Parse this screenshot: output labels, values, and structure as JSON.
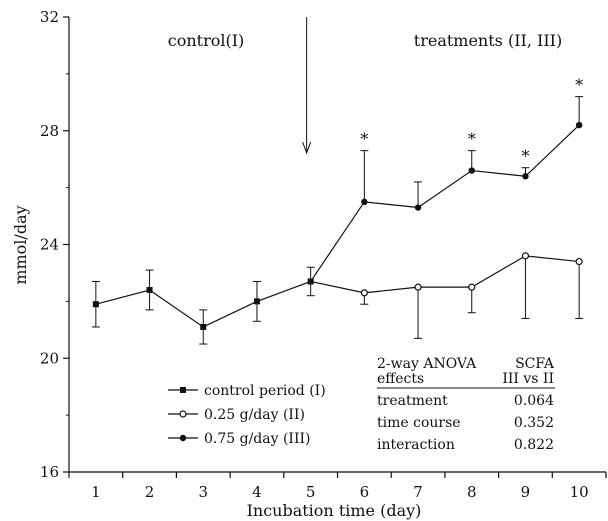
{
  "chart_data": {
    "type": "line",
    "xlabel": "Incubation time (day)",
    "ylabel": "mmol/day",
    "x": [
      1,
      2,
      3,
      4,
      5,
      6,
      7,
      8,
      9,
      10
    ],
    "xlim": [
      0.5,
      10.5
    ],
    "ylim": [
      16,
      32
    ],
    "yticks": [
      16,
      20,
      24,
      28,
      32
    ],
    "series": [
      {
        "name": "control period (I)",
        "marker": "square",
        "x": [
          1,
          2,
          3,
          4,
          5
        ],
        "values": [
          21.9,
          22.4,
          21.1,
          22.0,
          22.7
        ],
        "error_up": [
          0.8,
          0.7,
          0.6,
          0.7,
          0.5
        ],
        "error_down": [
          0.8,
          0.7,
          0.6,
          0.7,
          0.5
        ]
      },
      {
        "name": "0.25 g/day (II)",
        "marker": "open-circle",
        "x": [
          5,
          6,
          7,
          8,
          9,
          10
        ],
        "values": [
          22.7,
          22.3,
          22.5,
          22.5,
          23.6,
          23.4
        ],
        "error_up": [
          0,
          0,
          0,
          0,
          0,
          0
        ],
        "error_down": [
          0,
          0.4,
          1.8,
          0.9,
          2.2,
          2.0
        ]
      },
      {
        "name": "0.75 g/day (III)",
        "marker": "filled-circle",
        "x": [
          5,
          6,
          7,
          8,
          9,
          10
        ],
        "values": [
          22.7,
          25.5,
          25.3,
          26.6,
          26.4,
          28.2
        ],
        "error_up": [
          0,
          1.8,
          0.9,
          0.7,
          0.3,
          1.0
        ],
        "error_down": [
          0,
          0,
          0,
          0,
          0,
          0
        ]
      }
    ],
    "significance_marks": [
      {
        "x": 6,
        "text": "*"
      },
      {
        "x": 8,
        "text": "*"
      },
      {
        "x": 9,
        "text": "*"
      },
      {
        "x": 10,
        "text": "*"
      }
    ],
    "annotations": {
      "control": "control(I)",
      "treatments": "treatments (II, III)",
      "arrow_x": 5
    },
    "stats_table": {
      "header_left": [
        "2-way ANOVA",
        "effects"
      ],
      "header_right": [
        "SCFA",
        "III vs II"
      ],
      "rows": [
        {
          "label": "treatment",
          "value": "0.064"
        },
        {
          "label": "time course",
          "value": "0.352"
        },
        {
          "label": "interaction",
          "value": "0.822"
        }
      ]
    },
    "legend_position": "bottom-left"
  }
}
